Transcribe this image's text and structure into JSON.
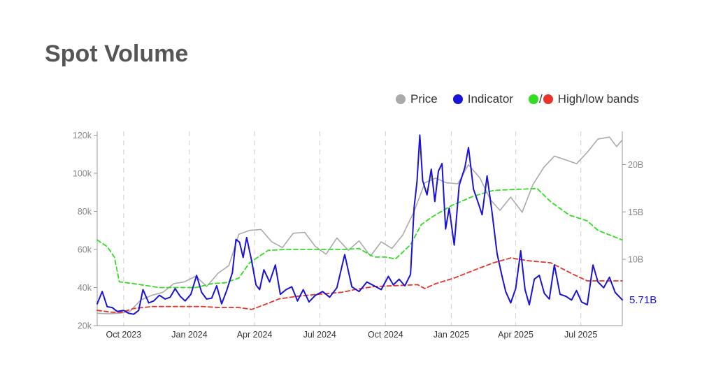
{
  "title": "Spot Volume",
  "legend": [
    {
      "label": "Price",
      "color": "#aaaaaa"
    },
    {
      "label": "Indicator",
      "color": "#1a12d6"
    },
    {
      "label": "High/low bands",
      "colors": [
        "#33dd22",
        "#e8322a"
      ],
      "separator": "/"
    }
  ],
  "chart_data": {
    "type": "line",
    "x_ticks": [
      "Oct 2023",
      "Jan 2024",
      "Apr 2024",
      "Jul 2024",
      "Oct 2024",
      "Jan 2025",
      "Apr 2025",
      "Jul 2025"
    ],
    "x_range": [
      "2023-08-25",
      "2025-08-28"
    ],
    "y_left": {
      "label": "",
      "range": [
        20000,
        122000
      ],
      "ticks": [
        "20k",
        "40k",
        "60k",
        "80k",
        "100k",
        "120k"
      ],
      "tick_values": [
        20000,
        40000,
        60000,
        80000,
        100000,
        120000
      ]
    },
    "y_right": {
      "label": "",
      "range": [
        3,
        23.5
      ],
      "ticks": [
        "10B",
        "15B",
        "20B"
      ],
      "tick_values": [
        10,
        15,
        20
      ],
      "unit": "B"
    },
    "grid": "vertical dashed at month ticks",
    "last_value_label": "5.71B",
    "series": [
      {
        "name": "Price",
        "axis": "left",
        "color": "#aaaaaa",
        "points": [
          [
            "2023-08-25",
            26500
          ],
          [
            "2023-09-10",
            26200
          ],
          [
            "2023-09-25",
            26500
          ],
          [
            "2023-10-10",
            27500
          ],
          [
            "2023-10-25",
            33500
          ],
          [
            "2023-11-10",
            36000
          ],
          [
            "2023-11-25",
            37500
          ],
          [
            "2023-12-10",
            42000
          ],
          [
            "2023-12-25",
            43000
          ],
          [
            "2024-01-10",
            46000
          ],
          [
            "2024-01-25",
            40500
          ],
          [
            "2024-02-10",
            47500
          ],
          [
            "2024-02-25",
            51500
          ],
          [
            "2024-03-10",
            68000
          ],
          [
            "2024-03-25",
            70000
          ],
          [
            "2024-04-10",
            70500
          ],
          [
            "2024-04-25",
            64000
          ],
          [
            "2024-05-10",
            61000
          ],
          [
            "2024-05-25",
            68500
          ],
          [
            "2024-06-10",
            69000
          ],
          [
            "2024-06-25",
            61500
          ],
          [
            "2024-07-10",
            57500
          ],
          [
            "2024-07-25",
            66000
          ],
          [
            "2024-08-10",
            59500
          ],
          [
            "2024-08-25",
            64500
          ],
          [
            "2024-09-10",
            56500
          ],
          [
            "2024-09-25",
            64000
          ],
          [
            "2024-10-10",
            60500
          ],
          [
            "2024-10-25",
            67500
          ],
          [
            "2024-11-10",
            80000
          ],
          [
            "2024-11-25",
            95000
          ],
          [
            "2024-12-10",
            97500
          ],
          [
            "2024-12-25",
            95000
          ],
          [
            "2025-01-10",
            94500
          ],
          [
            "2025-01-25",
            104500
          ],
          [
            "2025-02-10",
            97500
          ],
          [
            "2025-02-25",
            86000
          ],
          [
            "2025-03-10",
            80500
          ],
          [
            "2025-03-25",
            87500
          ],
          [
            "2025-04-10",
            79500
          ],
          [
            "2025-04-25",
            94000
          ],
          [
            "2025-05-10",
            103000
          ],
          [
            "2025-05-25",
            109000
          ],
          [
            "2025-06-10",
            107000
          ],
          [
            "2025-06-25",
            105000
          ],
          [
            "2025-07-10",
            111000
          ],
          [
            "2025-07-25",
            118000
          ],
          [
            "2025-08-10",
            119000
          ],
          [
            "2025-08-20",
            114000
          ],
          [
            "2025-08-28",
            117500
          ]
        ]
      },
      {
        "name": "Indicator",
        "axis": "right",
        "color": "#1a12d6",
        "points": [
          [
            "2023-08-25",
            5.3
          ],
          [
            "2023-09-01",
            6.6
          ],
          [
            "2023-09-08",
            5.0
          ],
          [
            "2023-09-15",
            4.9
          ],
          [
            "2023-09-22",
            4.5
          ],
          [
            "2023-10-01",
            4.6
          ],
          [
            "2023-10-08",
            4.3
          ],
          [
            "2023-10-15",
            4.2
          ],
          [
            "2023-10-22",
            4.6
          ],
          [
            "2023-10-28",
            6.8
          ],
          [
            "2023-11-05",
            5.4
          ],
          [
            "2023-11-12",
            5.6
          ],
          [
            "2023-11-20",
            6.2
          ],
          [
            "2023-11-28",
            5.8
          ],
          [
            "2023-12-05",
            6.0
          ],
          [
            "2023-12-12",
            6.9
          ],
          [
            "2023-12-19",
            6.1
          ],
          [
            "2023-12-26",
            5.6
          ],
          [
            "2024-01-03",
            6.3
          ],
          [
            "2024-01-11",
            8.3
          ],
          [
            "2024-01-18",
            6.5
          ],
          [
            "2024-01-25",
            5.8
          ],
          [
            "2024-02-01",
            5.9
          ],
          [
            "2024-02-08",
            7.2
          ],
          [
            "2024-02-15",
            5.3
          ],
          [
            "2024-02-22",
            6.7
          ],
          [
            "2024-03-01",
            8.6
          ],
          [
            "2024-03-06",
            12.1
          ],
          [
            "2024-03-11",
            11.8
          ],
          [
            "2024-03-16",
            10.2
          ],
          [
            "2024-03-21",
            12.3
          ],
          [
            "2024-03-28",
            9.8
          ],
          [
            "2024-04-03",
            7.3
          ],
          [
            "2024-04-08",
            6.8
          ],
          [
            "2024-04-14",
            8.9
          ],
          [
            "2024-04-22",
            7.6
          ],
          [
            "2024-04-30",
            9.4
          ],
          [
            "2024-05-07",
            6.3
          ],
          [
            "2024-05-15",
            6.8
          ],
          [
            "2024-05-23",
            7.1
          ],
          [
            "2024-05-31",
            5.6
          ],
          [
            "2024-06-08",
            6.8
          ],
          [
            "2024-06-16",
            5.5
          ],
          [
            "2024-06-25",
            6.2
          ],
          [
            "2024-07-05",
            6.6
          ],
          [
            "2024-07-15",
            6.0
          ],
          [
            "2024-07-25",
            7.0
          ],
          [
            "2024-08-05",
            10.5
          ],
          [
            "2024-08-15",
            7.1
          ],
          [
            "2024-08-25",
            6.6
          ],
          [
            "2024-09-05",
            7.6
          ],
          [
            "2024-09-15",
            7.2
          ],
          [
            "2024-09-25",
            6.8
          ],
          [
            "2024-10-05",
            8.2
          ],
          [
            "2024-10-12",
            7.3
          ],
          [
            "2024-10-20",
            7.9
          ],
          [
            "2024-10-28",
            7.2
          ],
          [
            "2024-11-05",
            8.4
          ],
          [
            "2024-11-10",
            15.5
          ],
          [
            "2024-11-14",
            18.2
          ],
          [
            "2024-11-18",
            23.1
          ],
          [
            "2024-11-22",
            18.3
          ],
          [
            "2024-11-28",
            16.8
          ],
          [
            "2024-12-04",
            19.5
          ],
          [
            "2024-12-09",
            16.1
          ],
          [
            "2024-12-14",
            19.3
          ],
          [
            "2024-12-19",
            20.1
          ],
          [
            "2024-12-24",
            13.2
          ],
          [
            "2024-12-29",
            15.4
          ],
          [
            "2025-01-05",
            11.5
          ],
          [
            "2025-01-12",
            17.8
          ],
          [
            "2025-01-20",
            19.7
          ],
          [
            "2025-01-25",
            21.8
          ],
          [
            "2025-02-01",
            17.4
          ],
          [
            "2025-02-07",
            16.1
          ],
          [
            "2025-02-13",
            14.7
          ],
          [
            "2025-02-20",
            18.8
          ],
          [
            "2025-02-27",
            14.9
          ],
          [
            "2025-03-06",
            10.6
          ],
          [
            "2025-03-12",
            8.5
          ],
          [
            "2025-03-18",
            6.6
          ],
          [
            "2025-03-25",
            5.4
          ],
          [
            "2025-04-01",
            6.9
          ],
          [
            "2025-04-08",
            10.9
          ],
          [
            "2025-04-14",
            6.8
          ],
          [
            "2025-04-20",
            5.2
          ],
          [
            "2025-04-27",
            7.9
          ],
          [
            "2025-05-04",
            8.3
          ],
          [
            "2025-05-11",
            6.4
          ],
          [
            "2025-05-18",
            5.8
          ],
          [
            "2025-05-25",
            9.4
          ],
          [
            "2025-06-02",
            6.3
          ],
          [
            "2025-06-10",
            6.1
          ],
          [
            "2025-06-18",
            5.7
          ],
          [
            "2025-06-25",
            6.7
          ],
          [
            "2025-07-02",
            5.5
          ],
          [
            "2025-07-10",
            5.2
          ],
          [
            "2025-07-18",
            9.4
          ],
          [
            "2025-07-25",
            7.6
          ],
          [
            "2025-08-02",
            7.0
          ],
          [
            "2025-08-10",
            8.1
          ],
          [
            "2025-08-18",
            6.5
          ],
          [
            "2025-08-28",
            5.71
          ]
        ]
      },
      {
        "name": "High band",
        "axis": "left",
        "color": "#33dd22",
        "dashed": true,
        "points": [
          [
            "2023-08-25",
            65000
          ],
          [
            "2023-09-08",
            61500
          ],
          [
            "2023-09-18",
            56000
          ],
          [
            "2023-09-25",
            43000
          ],
          [
            "2023-10-15",
            42000
          ],
          [
            "2023-11-20",
            40000
          ],
          [
            "2023-12-15",
            40000
          ],
          [
            "2024-01-10",
            40000
          ],
          [
            "2024-02-01",
            42000
          ],
          [
            "2024-02-20",
            42500
          ],
          [
            "2024-03-10",
            45000
          ],
          [
            "2024-03-25",
            53000
          ],
          [
            "2024-04-20",
            59500
          ],
          [
            "2024-05-15",
            60000
          ],
          [
            "2024-08-05",
            60000
          ],
          [
            "2024-08-25",
            60500
          ],
          [
            "2024-09-15",
            56000
          ],
          [
            "2024-10-01",
            56000
          ],
          [
            "2024-10-15",
            55000
          ],
          [
            "2024-11-05",
            62500
          ],
          [
            "2024-11-20",
            73000
          ],
          [
            "2024-12-05",
            77000
          ],
          [
            "2025-01-01",
            83000
          ],
          [
            "2025-02-01",
            88000
          ],
          [
            "2025-03-01",
            91000
          ],
          [
            "2025-04-01",
            91500
          ],
          [
            "2025-05-01",
            92000
          ],
          [
            "2025-05-20",
            85000
          ],
          [
            "2025-06-15",
            78000
          ],
          [
            "2025-07-10",
            75000
          ],
          [
            "2025-07-25",
            70000
          ],
          [
            "2025-08-28",
            65000
          ]
        ]
      },
      {
        "name": "Low band",
        "axis": "left",
        "color": "#e8322a",
        "dashed": true,
        "points": [
          [
            "2023-08-25",
            28000
          ],
          [
            "2023-09-15",
            27000
          ],
          [
            "2023-09-28",
            27000
          ],
          [
            "2023-10-15",
            29000
          ],
          [
            "2023-11-10",
            30000
          ],
          [
            "2023-12-15",
            30000
          ],
          [
            "2024-01-20",
            30000
          ],
          [
            "2024-02-10",
            29500
          ],
          [
            "2024-03-10",
            29500
          ],
          [
            "2024-03-28",
            28500
          ],
          [
            "2024-04-15",
            31000
          ],
          [
            "2024-05-05",
            34000
          ],
          [
            "2024-06-01",
            35500
          ],
          [
            "2024-07-01",
            36500
          ],
          [
            "2024-08-01",
            37500
          ],
          [
            "2024-08-20",
            39000
          ],
          [
            "2024-09-15",
            40500
          ],
          [
            "2024-10-15",
            41000
          ],
          [
            "2024-11-15",
            41500
          ],
          [
            "2024-11-25",
            39500
          ],
          [
            "2024-12-10",
            42000
          ],
          [
            "2025-01-05",
            45000
          ],
          [
            "2025-02-01",
            49000
          ],
          [
            "2025-03-01",
            53000
          ],
          [
            "2025-03-25",
            55500
          ],
          [
            "2025-04-20",
            54000
          ],
          [
            "2025-05-20",
            53000
          ],
          [
            "2025-06-20",
            47000
          ],
          [
            "2025-07-10",
            43500
          ],
          [
            "2025-07-25",
            43500
          ],
          [
            "2025-08-28",
            43500
          ]
        ]
      }
    ]
  }
}
